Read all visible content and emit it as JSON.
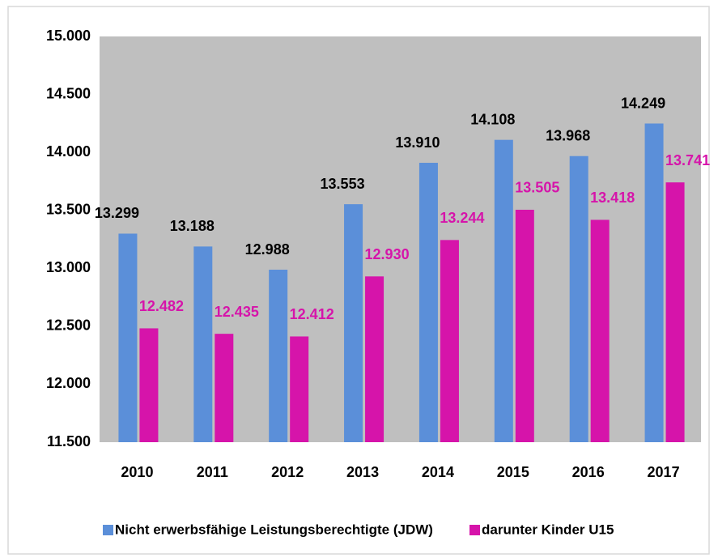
{
  "chart_data": {
    "type": "bar",
    "categories": [
      "2010",
      "2011",
      "2012",
      "2013",
      "2014",
      "2015",
      "2016",
      "2017"
    ],
    "series": [
      {
        "name": "Nicht erwerbsfähige Leistungsberechtigte (JDW)",
        "color": "#5b8fd9",
        "values": [
          13299,
          13188,
          12988,
          13553,
          13910,
          14108,
          13968,
          14249
        ],
        "value_labels": [
          "13.299",
          "13.188",
          "12.988",
          "13.553",
          "13.910",
          "14.108",
          "13.968",
          "14.249"
        ]
      },
      {
        "name": "darunter Kinder U15",
        "color": "#d614aa",
        "values": [
          12482,
          12435,
          12412,
          12930,
          13244,
          13505,
          13418,
          13741
        ],
        "value_labels": [
          "12.482",
          "12.435",
          "12.412",
          "12.930",
          "13.244",
          "13.505",
          "13.418",
          "13.741"
        ]
      }
    ],
    "ylim": [
      11500,
      15000
    ],
    "yticks": [
      {
        "value": 11500,
        "label": "11.500"
      },
      {
        "value": 12000,
        "label": "12.000"
      },
      {
        "value": 12500,
        "label": "12.500"
      },
      {
        "value": 13000,
        "label": "13.000"
      },
      {
        "value": 13500,
        "label": "13.500"
      },
      {
        "value": 14000,
        "label": "14.000"
      },
      {
        "value": 14500,
        "label": "14.500"
      },
      {
        "value": 15000,
        "label": "15.000"
      }
    ],
    "grid": false,
    "legend": "bottom"
  }
}
